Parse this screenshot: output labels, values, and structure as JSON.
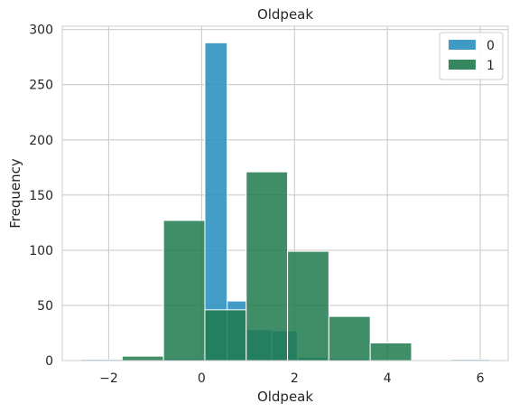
{
  "chart_data": {
    "type": "bar",
    "title": "Oldpeak",
    "xlabel": "Oldpeak",
    "ylabel": "Frequency",
    "xlim": [
      -3.0,
      6.6
    ],
    "ylim": [
      0,
      303
    ],
    "xticks": [
      -2,
      0,
      2,
      4,
      6
    ],
    "xtick_labels": [
      "−2",
      "0",
      "2",
      "4",
      "6"
    ],
    "yticks": [
      0,
      50,
      100,
      150,
      200,
      250,
      300
    ],
    "grid": true,
    "legend": {
      "placement": "top-right"
    },
    "series": [
      {
        "name": "0",
        "color": "#2a8fbf",
        "bins": [
          {
            "x0": -2.6,
            "x1": -1.71,
            "value": 1
          },
          {
            "x0": -1.71,
            "x1": -0.82,
            "value": 0
          },
          {
            "x0": -0.82,
            "x1": 0.07,
            "value": 2
          },
          {
            "x0": 0.07,
            "x1": 0.55,
            "value": 288
          },
          {
            "x0": 0.55,
            "x1": 0.96,
            "value": 54
          },
          {
            "x0": 0.96,
            "x1": 1.51,
            "value": 28
          },
          {
            "x0": 1.51,
            "x1": 2.06,
            "value": 27
          },
          {
            "x0": 2.06,
            "x1": 2.71,
            "value": 3
          },
          {
            "x0": 2.71,
            "x1": 3.6,
            "value": 2
          },
          {
            "x0": 3.6,
            "x1": 4.49,
            "value": 0
          },
          {
            "x0": 4.49,
            "x1": 5.38,
            "value": 0
          },
          {
            "x0": 5.38,
            "x1": 6.2,
            "value": 1
          }
        ]
      },
      {
        "name": "1",
        "color": "#1f7a4d",
        "bins": [
          {
            "x0": -2.6,
            "x1": -1.71,
            "value": 0
          },
          {
            "x0": -1.71,
            "x1": -0.82,
            "value": 4
          },
          {
            "x0": -0.82,
            "x1": 0.07,
            "value": 127
          },
          {
            "x0": 0.07,
            "x1": 0.96,
            "value": 46
          },
          {
            "x0": 0.96,
            "x1": 1.85,
            "value": 171
          },
          {
            "x0": 1.85,
            "x1": 2.74,
            "value": 99
          },
          {
            "x0": 2.74,
            "x1": 3.63,
            "value": 40
          },
          {
            "x0": 3.63,
            "x1": 4.52,
            "value": 16
          },
          {
            "x0": 4.52,
            "x1": 5.41,
            "value": 0
          },
          {
            "x0": 5.41,
            "x1": 6.2,
            "value": 0
          }
        ]
      }
    ]
  }
}
